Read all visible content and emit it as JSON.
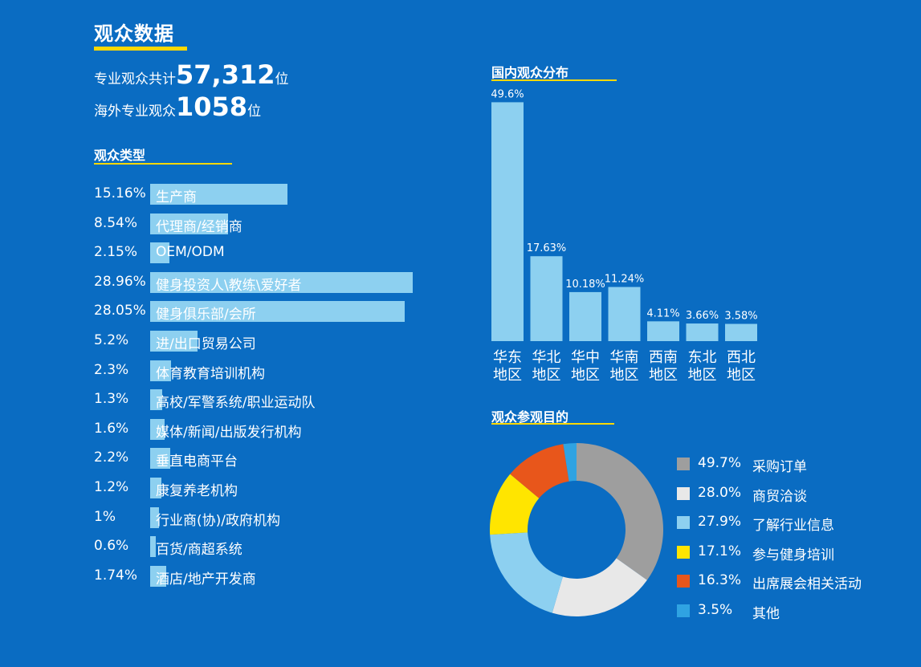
{
  "header": {
    "title": "观众数据",
    "total_prefix": "专业观众共计",
    "total_value": "57,312",
    "total_suffix": "位",
    "overseas_prefix": "海外专业观众",
    "overseas_value": "1058",
    "overseas_suffix": "位"
  },
  "chart_data": [
    {
      "type": "bar",
      "orientation": "horizontal",
      "title": "观众类型",
      "categories": [
        "生产商",
        "代理商/经销商",
        "OEM/ODM",
        "健身投资人\\教练\\爱好者",
        "健身俱乐部/会所",
        "进/出口贸易公司",
        "体育教育培训机构",
        "高校/军警系统/职业运动队",
        "媒体/新闻/出版发行机构",
        "垂直电商平台",
        "康复养老机构",
        "行业商(协)/政府机构",
        "百货/商超系统",
        "酒店/地产开发商"
      ],
      "labels": [
        "15.16%",
        "8.54%",
        "2.15%",
        "28.96%",
        "28.05%",
        "5.2%",
        "2.3%",
        "1.3%",
        "1.6%",
        "2.2%",
        "1.2%",
        "1%",
        "0.6%",
        "1.74%"
      ],
      "values": [
        15.16,
        8.54,
        2.15,
        28.96,
        28.05,
        5.2,
        2.3,
        1.3,
        1.6,
        2.2,
        1.2,
        1,
        0.6,
        1.74
      ],
      "color": "#8dd0f0"
    },
    {
      "type": "bar",
      "title": "国内观众分布",
      "categories": [
        "华东\n地区",
        "华北\n地区",
        "华中\n地区",
        "华南\n地区",
        "西南\n地区",
        "东北\n地区",
        "西北\n地区"
      ],
      "labels": [
        "49.6%",
        "17.63%",
        "10.18%",
        "11.24%",
        "4.11%",
        "3.66%",
        "3.58%"
      ],
      "values": [
        49.6,
        17.63,
        10.18,
        11.24,
        4.11,
        3.66,
        3.58
      ],
      "color": "#8dd0f0"
    },
    {
      "type": "pie",
      "variant": "donut",
      "title": "观众参观目的",
      "legend_position": "right",
      "slices": [
        {
          "label": "采购订单",
          "pct_text": "49.7%",
          "value": 49.7,
          "color": "#9e9e9e"
        },
        {
          "label": "商贸洽谈",
          "pct_text": "28.0%",
          "value": 28.0,
          "color": "#e8e8e8"
        },
        {
          "label": "了解行业信息",
          "pct_text": "27.9%",
          "value": 27.9,
          "color": "#8dd0f0"
        },
        {
          "label": "参与健身培训",
          "pct_text": "17.1%",
          "value": 17.1,
          "color": "#ffe500"
        },
        {
          "label": "出席展会相关活动",
          "pct_text": "16.3%",
          "value": 16.3,
          "color": "#e8561b"
        },
        {
          "label": "其他",
          "pct_text": "3.5%",
          "value": 3.5,
          "color": "#2fa3e2"
        }
      ]
    }
  ]
}
